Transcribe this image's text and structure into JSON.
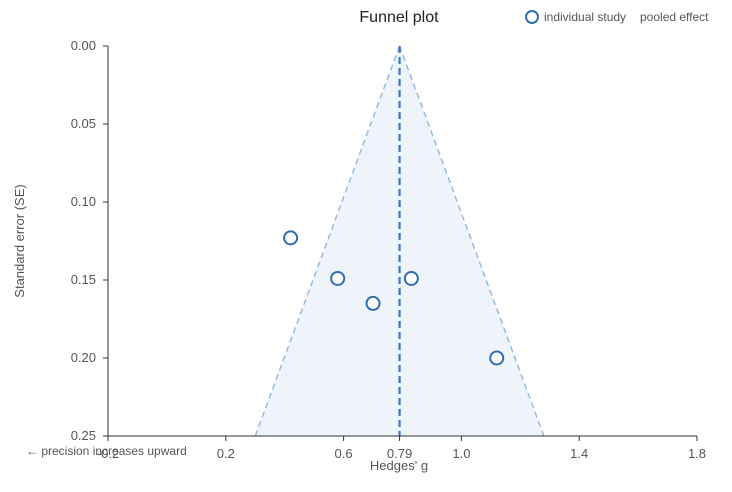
{
  "chart_data": {
    "type": "scatter",
    "title": "Funnel plot",
    "xlabel": "Hedges' g",
    "ylabel": "Standard error (SE)",
    "xlim": [
      -0.2,
      1.8
    ],
    "ylim": [
      0.0,
      0.25
    ],
    "y_inverted": true,
    "x_ticks": [
      "-0.2",
      "0.2",
      "0.6",
      "0.79",
      "1.0",
      "1.4",
      "1.8"
    ],
    "x_tick_values": [
      -0.2,
      0.2,
      0.6,
      0.79,
      1.0,
      1.4,
      1.8
    ],
    "y_ticks": [
      "0.00",
      "0.05",
      "0.10",
      "0.15",
      "0.20",
      "0.25"
    ],
    "y_tick_values": [
      0.0,
      0.05,
      0.1,
      0.15,
      0.2,
      0.25
    ],
    "pooled_effect": 0.79,
    "funnel_base": [
      0.3,
      1.28
    ],
    "legend_placement": "top-right",
    "legend": [
      {
        "label": "individual study",
        "marker": "circle-open"
      },
      {
        "label": "pooled effect",
        "marker": "dashed-line"
      }
    ],
    "series": [
      {
        "name": "individual study",
        "points": [
          {
            "x": 0.42,
            "y": 0.123
          },
          {
            "x": 0.58,
            "y": 0.149
          },
          {
            "x": 0.83,
            "y": 0.149
          },
          {
            "x": 0.7,
            "y": 0.165
          },
          {
            "x": 1.12,
            "y": 0.2
          }
        ]
      }
    ],
    "annotation": "← precision increases upward",
    "colors": {
      "marker": "#2e6eb0",
      "pooled_line": "#3a78c2",
      "funnel_fill": "#eef4fa",
      "funnel_edge": "#8db8e3",
      "axis": "#333333"
    }
  }
}
